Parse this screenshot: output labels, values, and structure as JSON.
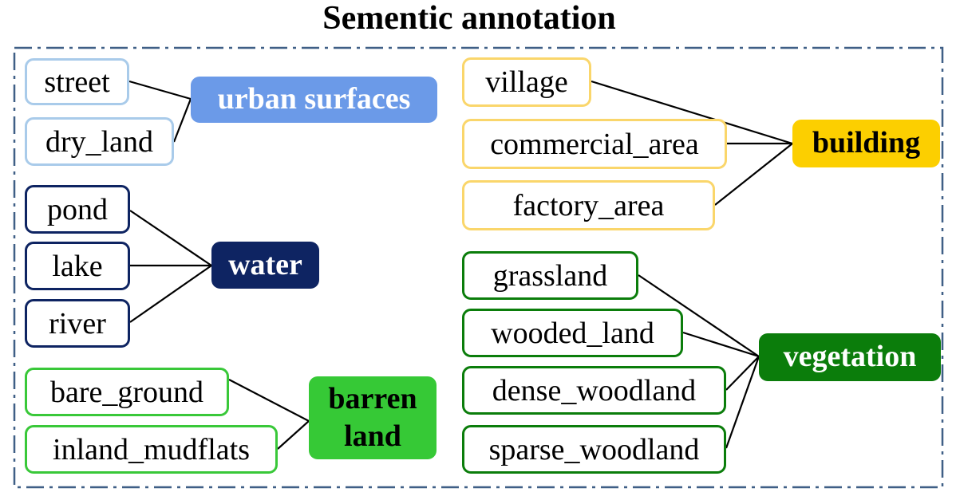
{
  "title": "Sementic annotation",
  "groups": {
    "urban": {
      "label": "urban surfaces",
      "color": "#6b9ae8",
      "border": "#a9cbea",
      "items": [
        "street",
        "dry_land"
      ]
    },
    "water": {
      "label": "water",
      "color": "#0e2462",
      "border": "#0e2462",
      "items": [
        "pond",
        "lake",
        "river"
      ]
    },
    "barren": {
      "label_line1": "barren",
      "label_line2": "land",
      "color": "#36c936",
      "border": "#39c839",
      "items": [
        "bare_ground",
        "inland_mudflats"
      ]
    },
    "building": {
      "label": "building",
      "color": "#fccf00",
      "border": "#fad66b",
      "items": [
        "village",
        "commercial_area",
        "factory_area"
      ]
    },
    "vegetation": {
      "label": "vegetation",
      "color": "#0b7d0b",
      "border": "#0b7d0b",
      "items": [
        "grassland",
        "wooded_land",
        "dense_woodland",
        "sparse_woodland"
      ]
    }
  },
  "colors": {
    "frame_dashes": "#3f5f86",
    "connector": "#000000"
  }
}
